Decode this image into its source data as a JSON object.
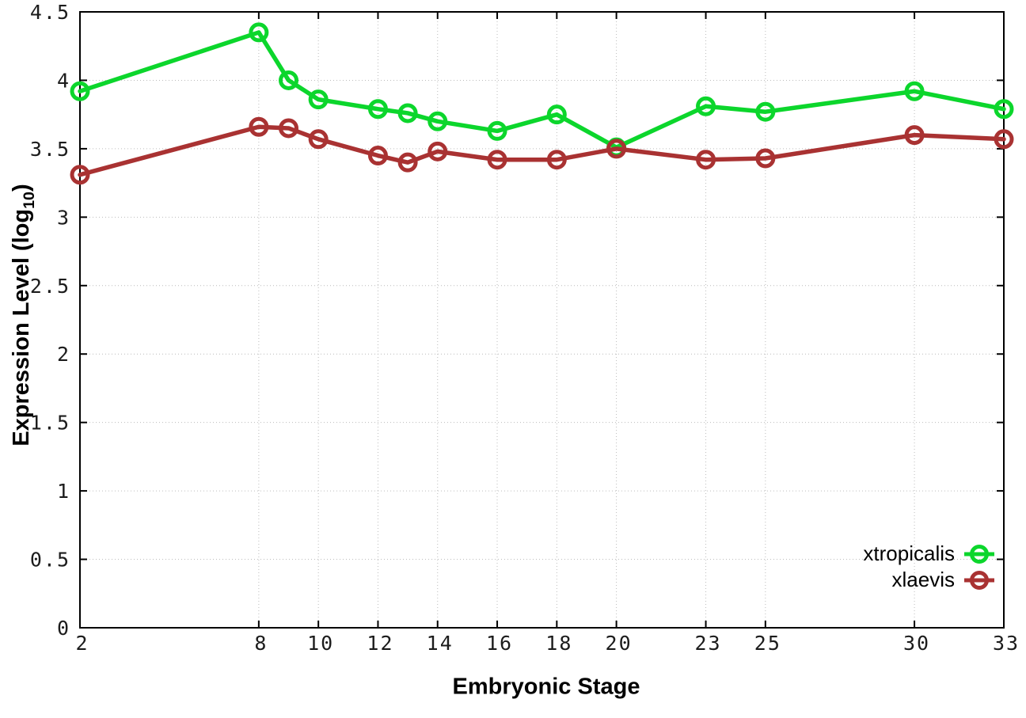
{
  "chart_data": {
    "type": "line",
    "x": [
      2,
      8,
      9,
      10,
      12,
      13,
      14,
      16,
      18,
      20,
      23,
      25,
      30,
      33
    ],
    "series": [
      {
        "name": "xtropicalis",
        "color": "#0cd62c",
        "values": [
          3.92,
          4.35,
          4.0,
          3.86,
          3.79,
          3.76,
          3.7,
          3.63,
          3.75,
          3.51,
          3.81,
          3.77,
          3.92,
          3.79
        ]
      },
      {
        "name": "xlaevis",
        "color": "#a93232",
        "values": [
          3.31,
          3.66,
          3.65,
          3.57,
          3.45,
          3.4,
          3.48,
          3.42,
          3.42,
          3.5,
          3.42,
          3.43,
          3.6,
          3.57
        ]
      }
    ],
    "title": "",
    "xlabel": "Embryonic Stage",
    "ylabel": "Expression Level (log10)",
    "ylabel_parts": {
      "main": "Expression Level (log",
      "sub": "10",
      "end": ")"
    },
    "xlim": [
      2,
      33
    ],
    "ylim": [
      0,
      4.5
    ],
    "xticks": [
      2,
      8,
      10,
      12,
      14,
      16,
      18,
      20,
      23,
      25,
      30,
      33
    ],
    "yticks": [
      0,
      0.5,
      1,
      1.5,
      2,
      2.5,
      3,
      3.5,
      4,
      4.5
    ],
    "grid": true,
    "legend_position": "bottom-right",
    "marker": "open-circle",
    "colors": {
      "background": "#ffffff",
      "border": "#000000",
      "grid": "#bcbcbc",
      "tick_label": "#1c1c1c"
    }
  }
}
